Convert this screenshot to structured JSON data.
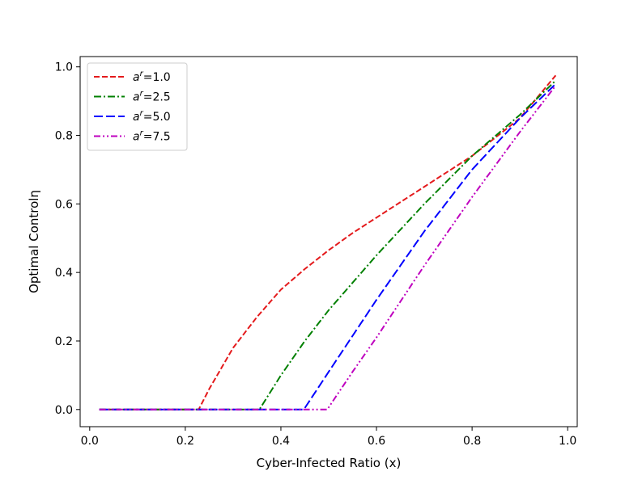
{
  "chart_data": {
    "type": "line",
    "title": "",
    "xlabel": "Cyber-Infected Ratio (x)",
    "ylabel": "Optimal Controlη",
    "xlim": [
      -0.02,
      1.02
    ],
    "ylim": [
      -0.05,
      1.03
    ],
    "xticks": [
      0.0,
      0.2,
      0.4,
      0.6,
      0.8,
      1.0
    ],
    "xtick_labels": [
      "0.0",
      "0.2",
      "0.4",
      "0.6",
      "0.8",
      "1.0"
    ],
    "yticks": [
      0.0,
      0.2,
      0.4,
      0.6,
      0.8,
      1.0
    ],
    "ytick_labels": [
      "0.0",
      "0.2",
      "0.4",
      "0.6",
      "0.8",
      "1.0"
    ],
    "grid": false,
    "legend_position": "top-left",
    "series": [
      {
        "name": "a",
        "sup": "r",
        "value_label": "=1.0",
        "color": "#e41a1c",
        "dash": "dashed",
        "points": [
          [
            0.02,
            0.0
          ],
          [
            0.228,
            0.0
          ],
          [
            0.25,
            0.06
          ],
          [
            0.3,
            0.18
          ],
          [
            0.35,
            0.27
          ],
          [
            0.4,
            0.35
          ],
          [
            0.45,
            0.41
          ],
          [
            0.5,
            0.465
          ],
          [
            0.55,
            0.515
          ],
          [
            0.6,
            0.56
          ],
          [
            0.7,
            0.65
          ],
          [
            0.8,
            0.74
          ],
          [
            0.9,
            0.85
          ],
          [
            0.975,
            0.975
          ]
        ]
      },
      {
        "name": "a",
        "sup": "r",
        "value_label": "=2.5",
        "color": "#008000",
        "dash": "dashdot",
        "points": [
          [
            0.02,
            0.0
          ],
          [
            0.355,
            0.0
          ],
          [
            0.4,
            0.1
          ],
          [
            0.45,
            0.2
          ],
          [
            0.5,
            0.29
          ],
          [
            0.6,
            0.45
          ],
          [
            0.7,
            0.6
          ],
          [
            0.8,
            0.74
          ],
          [
            0.9,
            0.86
          ],
          [
            0.975,
            0.96
          ]
        ]
      },
      {
        "name": "a",
        "sup": "r",
        "value_label": "=5.0",
        "color": "#0000ff",
        "dash": "longdash",
        "points": [
          [
            0.02,
            0.0
          ],
          [
            0.448,
            0.0
          ],
          [
            0.5,
            0.11
          ],
          [
            0.6,
            0.32
          ],
          [
            0.7,
            0.52
          ],
          [
            0.8,
            0.7
          ],
          [
            0.9,
            0.85
          ],
          [
            0.975,
            0.95
          ]
        ]
      },
      {
        "name": "a",
        "sup": "r",
        "value_label": "=7.5",
        "color": "#bf00bf",
        "dash": "dashdotdot",
        "points": [
          [
            0.02,
            0.0
          ],
          [
            0.497,
            0.0
          ],
          [
            0.55,
            0.11
          ],
          [
            0.6,
            0.21
          ],
          [
            0.7,
            0.42
          ],
          [
            0.8,
            0.62
          ],
          [
            0.9,
            0.81
          ],
          [
            0.975,
            0.945
          ]
        ]
      }
    ]
  }
}
